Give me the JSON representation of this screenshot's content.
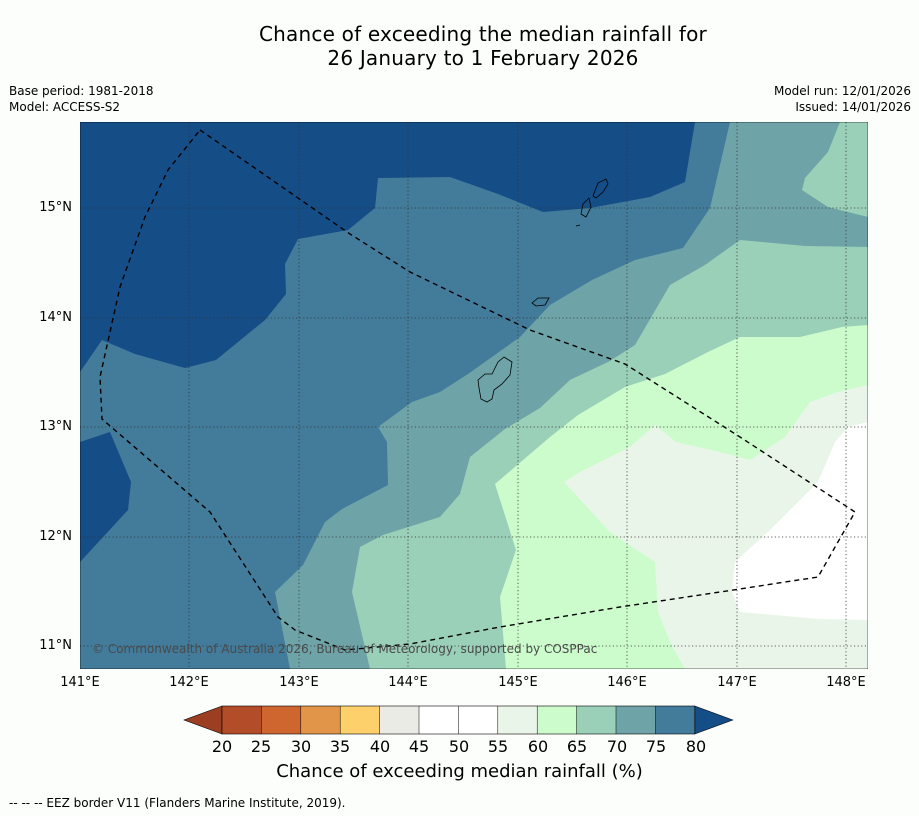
{
  "title_line1": "Chance of exceeding the median rainfall for",
  "title_line2": "26 January to 1 February 2026",
  "meta": {
    "base_period": "Base period: 1981-2018",
    "model": "Model: ACCESS-S2",
    "model_run": "Model run: 12/01/2026",
    "issued": "Issued: 14/01/2026"
  },
  "map": {
    "lat_ticks": [
      "15°N",
      "14°N",
      "13°N",
      "12°N",
      "11°N"
    ],
    "lon_ticks": [
      "141°E",
      "142°E",
      "143°E",
      "144°E",
      "145°E",
      "146°E",
      "147°E",
      "148°E"
    ],
    "copyright": "© Commonwealth of Australia 2026, Bureau of Meteorology, supported by COSPPac"
  },
  "colorbar": {
    "ticks": [
      "20",
      "25",
      "30",
      "35",
      "40",
      "45",
      "50",
      "55",
      "60",
      "65",
      "70",
      "75",
      "80"
    ],
    "colors": [
      "#b34c28",
      "#cf6630",
      "#e19548",
      "#fdd06c",
      "#ebebe6",
      "#ffffff",
      "#ffffff",
      "#eaf5ea",
      "#ccfccc",
      "#9bd0b8",
      "#6ea4a8",
      "#437b9a"
    ],
    "under_color": "#9b3e22",
    "over_color": "#154d87",
    "label": "Chance of exceeding median rainfall (%)"
  },
  "footnote": "-- -- -- EEZ border V11 (Flanders Marine Institute, 2019)."
}
